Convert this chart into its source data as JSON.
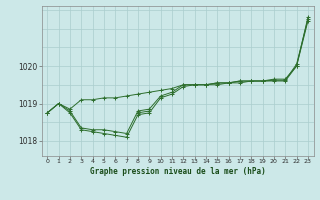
{
  "xlabel": "Graphe pression niveau de la mer (hPa)",
  "bg_color": "#cce8e8",
  "grid_color": "#aacece",
  "line_color": "#2d6e2d",
  "xlim": [
    -0.5,
    23.5
  ],
  "ylim": [
    1017.6,
    1021.6
  ],
  "yticks": [
    1018,
    1019,
    1020
  ],
  "xticks": [
    0,
    1,
    2,
    3,
    4,
    5,
    6,
    7,
    8,
    9,
    10,
    11,
    12,
    13,
    14,
    15,
    16,
    17,
    18,
    19,
    20,
    21,
    22,
    23
  ],
  "hgrid_lines": [
    1017.5,
    1018.0,
    1018.5,
    1019.0,
    1019.5,
    1020.0,
    1020.5,
    1021.0,
    1021.5
  ],
  "series": [
    {
      "x": [
        0,
        1,
        2,
        3,
        4,
        5,
        6,
        7,
        8,
        9,
        10,
        11,
        12,
        13,
        14,
        15,
        16,
        17,
        18,
        19,
        20,
        21,
        22,
        23
      ],
      "y": [
        1018.75,
        1019.0,
        1018.85,
        1019.1,
        1019.1,
        1019.15,
        1019.15,
        1019.2,
        1019.25,
        1019.3,
        1019.35,
        1019.4,
        1019.5,
        1019.5,
        1019.5,
        1019.55,
        1019.55,
        1019.6,
        1019.6,
        1019.6,
        1019.65,
        1019.65,
        1020.0,
        1021.3
      ]
    },
    {
      "x": [
        0,
        1,
        2,
        3,
        4,
        5,
        6,
        7,
        8,
        9,
        10,
        11,
        12,
        13,
        14,
        15,
        16,
        17,
        18,
        19,
        20,
        21,
        22,
        23
      ],
      "y": [
        1018.75,
        1019.0,
        1018.75,
        1018.3,
        1018.25,
        1018.2,
        1018.15,
        1018.1,
        1018.7,
        1018.75,
        1019.15,
        1019.25,
        1019.45,
        1019.5,
        1019.5,
        1019.5,
        1019.55,
        1019.55,
        1019.6,
        1019.6,
        1019.6,
        1019.6,
        1020.0,
        1021.2
      ]
    },
    {
      "x": [
        0,
        1,
        2,
        3,
        4,
        5,
        6,
        7,
        8,
        9,
        10,
        11,
        12,
        13,
        14,
        15,
        16,
        17,
        18,
        19,
        20,
        21,
        22,
        23
      ],
      "y": [
        1018.75,
        1019.0,
        1018.8,
        1018.35,
        1018.3,
        1018.3,
        1018.25,
        1018.2,
        1018.8,
        1018.85,
        1019.2,
        1019.3,
        1019.5,
        1019.5,
        1019.5,
        1019.55,
        1019.55,
        1019.6,
        1019.6,
        1019.6,
        1019.62,
        1019.62,
        1020.05,
        1021.25
      ]
    },
    {
      "x": [
        8,
        9
      ],
      "y": [
        1018.75,
        1018.8
      ]
    }
  ]
}
